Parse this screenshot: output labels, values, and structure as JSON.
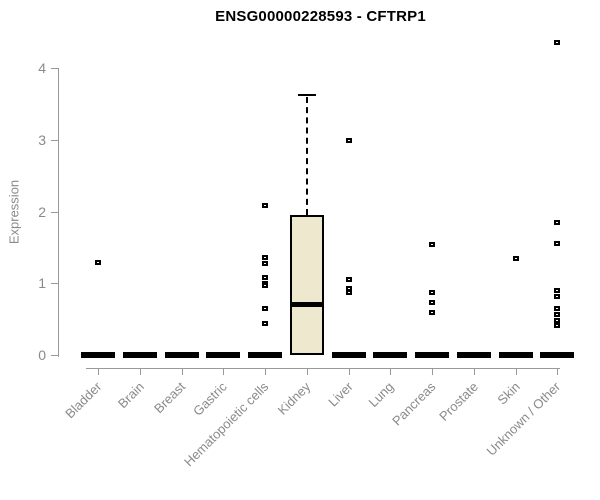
{
  "title": "ENSG00000228593 - CFTRP1",
  "colors": {
    "title_text": "#000000",
    "axis_line": "#999999",
    "axis_text": "#8a8a8a",
    "box_fill": "#ede8ce",
    "box_border": "#000000",
    "median": "#000000",
    "outlier": "#000000",
    "background": "#ffffff"
  },
  "chart_data": {
    "type": "boxplot",
    "title": "ENSG00000228593 - CFTRP1",
    "xlabel": "",
    "ylabel": "Expression",
    "ylim": [
      0,
      4.4
    ],
    "yticks": [
      0,
      1,
      2,
      3,
      4
    ],
    "grid": false,
    "legend": false,
    "categories": [
      "Bladder",
      "Brain",
      "Breast",
      "Gastric",
      "Hematopoietic cells",
      "Kidney",
      "Liver",
      "Lung",
      "Pancreas",
      "Prostate",
      "Skin",
      "Unknown / Other"
    ],
    "boxes": [
      {
        "category": "Bladder",
        "q1": 0,
        "median": 0,
        "q3": 0,
        "whisker_low": 0,
        "whisker_high": 0,
        "outliers": [
          1.3
        ]
      },
      {
        "category": "Brain",
        "q1": 0,
        "median": 0,
        "q3": 0,
        "whisker_low": 0,
        "whisker_high": 0,
        "outliers": []
      },
      {
        "category": "Breast",
        "q1": 0,
        "median": 0,
        "q3": 0,
        "whisker_low": 0,
        "whisker_high": 0,
        "outliers": []
      },
      {
        "category": "Gastric",
        "q1": 0,
        "median": 0,
        "q3": 0,
        "whisker_low": 0,
        "whisker_high": 0,
        "outliers": []
      },
      {
        "category": "Hematopoietic cells",
        "q1": 0,
        "median": 0,
        "q3": 0,
        "whisker_low": 0,
        "whisker_high": 0,
        "outliers": [
          2.09,
          1.37,
          1.28,
          1.09,
          1.0,
          0.98,
          0.66,
          0.45
        ]
      },
      {
        "category": "Kidney",
        "q1": 0,
        "median": 0.71,
        "q3": 1.95,
        "whisker_low": 0,
        "whisker_high": 3.62,
        "outliers": []
      },
      {
        "category": "Liver",
        "q1": 0,
        "median": 0,
        "q3": 0,
        "whisker_low": 0,
        "whisker_high": 0,
        "outliers": [
          3.0,
          1.06,
          0.93,
          0.88
        ]
      },
      {
        "category": "Lung",
        "q1": 0,
        "median": 0,
        "q3": 0,
        "whisker_low": 0,
        "whisker_high": 0,
        "outliers": []
      },
      {
        "category": "Pancreas",
        "q1": 0,
        "median": 0,
        "q3": 0,
        "whisker_low": 0,
        "whisker_high": 0,
        "outliers": [
          1.55,
          0.88,
          0.74,
          0.6
        ]
      },
      {
        "category": "Prostate",
        "q1": 0,
        "median": 0,
        "q3": 0,
        "whisker_low": 0,
        "whisker_high": 0,
        "outliers": []
      },
      {
        "category": "Skin",
        "q1": 0,
        "median": 0,
        "q3": 0,
        "whisker_low": 0,
        "whisker_high": 0,
        "outliers": [
          1.35
        ]
      },
      {
        "category": "Unknown / Other",
        "q1": 0,
        "median": 0,
        "q3": 0,
        "whisker_low": 0,
        "whisker_high": 0,
        "outliers": [
          4.36,
          1.85,
          1.56,
          0.91,
          0.82,
          0.66,
          0.57,
          0.49,
          0.42
        ]
      }
    ]
  }
}
